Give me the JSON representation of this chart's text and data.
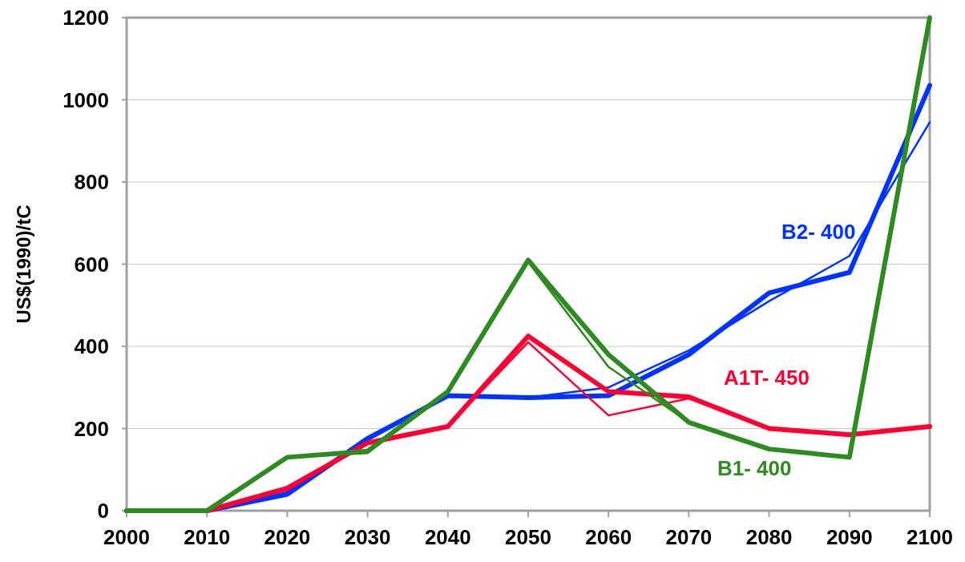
{
  "chart_data": {
    "type": "line",
    "ylabel": "US$(1990)/tC",
    "x": [
      2000,
      2010,
      2020,
      2030,
      2040,
      2050,
      2060,
      2070,
      2080,
      2090,
      2100
    ],
    "xlim": [
      2000,
      2100
    ],
    "xticks": [
      2000,
      2010,
      2020,
      2030,
      2040,
      2050,
      2060,
      2070,
      2080,
      2090,
      2100
    ],
    "ylim": [
      0,
      1200
    ],
    "yticks": [
      0,
      200,
      400,
      600,
      800,
      1000,
      1200
    ],
    "grid": "y",
    "line_style": "solid",
    "marker": "none",
    "series": [
      {
        "color": "#0033ff",
        "values": [
          0,
          0,
          45,
          180,
          280,
          275,
          300,
          390,
          510,
          620,
          945
        ]
      },
      {
        "name": "B2- 400",
        "color": "#0033ff",
        "values": [
          0,
          0,
          40,
          175,
          280,
          275,
          280,
          380,
          530,
          580,
          1035
        ]
      },
      {
        "color": "#ff0033",
        "values": [
          0,
          0,
          50,
          165,
          205,
          410,
          232,
          273,
          200,
          185,
          205
        ]
      },
      {
        "name": "A1T- 450",
        "color": "#ff0033",
        "values": [
          0,
          0,
          55,
          165,
          205,
          425,
          290,
          277,
          200,
          185,
          205
        ]
      },
      {
        "color": "#2e8b22",
        "values": [
          0,
          0,
          130,
          140,
          290,
          605,
          350,
          215,
          150,
          130,
          1200
        ]
      },
      {
        "name": "B1- 400",
        "color": "#2e8b22",
        "values": [
          0,
          0,
          130,
          145,
          290,
          610,
          380,
          215,
          150,
          130,
          1200
        ]
      }
    ]
  }
}
